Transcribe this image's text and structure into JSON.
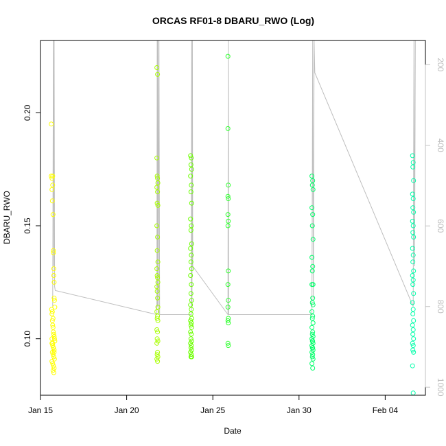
{
  "chart_data": {
    "type": "scatter",
    "title": "ORCAS RF01-8 DBARU_RWO (Log)",
    "xlabel": "Date",
    "ylabel": "DBARU_RWO",
    "x_type": "date",
    "xlim": [
      "2016-01-15T00:00",
      "2016-02-06T08:00"
    ],
    "ylim": [
      0.075,
      0.232
    ],
    "x_ticks": [
      {
        "date": "2016-01-15T00:00",
        "label": "Jan 15"
      },
      {
        "date": "2016-01-20T00:00",
        "label": "Jan 20"
      },
      {
        "date": "2016-01-25T00:00",
        "label": "Jan 25"
      },
      {
        "date": "2016-01-30T00:00",
        "label": "Jan 30"
      },
      {
        "date": "2016-02-04T00:00",
        "label": "Feb 04"
      }
    ],
    "y_ticks": [
      0.1,
      0.15,
      0.2
    ],
    "y_tick_labels": [
      "0.10",
      "0.15",
      "0.20"
    ],
    "right_axis": {
      "label_color": "#c0c0c0",
      "ticks": [
        200,
        400,
        600,
        800,
        1000
      ],
      "tick_labels": [
        "200",
        "400",
        "600",
        "800",
        "1000"
      ],
      "lim": [
        1020,
        140
      ],
      "reversed": true
    },
    "grid": false,
    "pressure_trace": {
      "color": "#bebebe",
      "points": [
        [
          "2016-01-15T17:00",
          800
        ],
        [
          "2016-01-15T18:00",
          140
        ],
        [
          "2016-01-15T18:30",
          700
        ],
        [
          "2016-01-15T19:00",
          140
        ],
        [
          "2016-01-15T19:40",
          750
        ],
        [
          "2016-01-15T20:30",
          760
        ],
        [
          "2016-01-21T18:00",
          820
        ],
        [
          "2016-01-21T18:30",
          140
        ],
        [
          "2016-01-21T19:00",
          800
        ],
        [
          "2016-01-21T19:30",
          140
        ],
        [
          "2016-01-21T20:00",
          820
        ],
        [
          "2016-01-21T21:00",
          140
        ],
        [
          "2016-01-21T22:00",
          820
        ],
        [
          "2016-01-23T18:00",
          820
        ],
        [
          "2016-01-23T18:30",
          140
        ],
        [
          "2016-01-23T19:00",
          800
        ],
        [
          "2016-01-23T19:30",
          140
        ],
        [
          "2016-01-23T20:00",
          700
        ],
        [
          "2016-01-25T21:00",
          820
        ],
        [
          "2016-01-25T21:30",
          140
        ],
        [
          "2016-01-25T22:00",
          820
        ],
        [
          "2016-01-30T18:00",
          820
        ],
        [
          "2016-01-30T19:00",
          140
        ],
        [
          "2016-01-30T20:00",
          780
        ],
        [
          "2016-01-30T21:00",
          140
        ],
        [
          "2016-01-30T22:00",
          220
        ],
        [
          "2016-02-05T15:00",
          800
        ],
        [
          "2016-02-05T16:00",
          140
        ],
        [
          "2016-02-05T17:00",
          700
        ],
        [
          "2016-02-05T18:00",
          140
        ]
      ]
    },
    "series": [
      {
        "color": "#ffff00",
        "x": [
          "2016-01-15T15:00",
          "2016-01-15T15:00",
          "2016-01-15T16:00",
          "2016-01-15T16:00",
          "2016-01-15T16:30",
          "2016-01-15T17:00",
          "2016-01-15T17:00",
          "2016-01-15T17:30",
          "2016-01-15T18:00",
          "2016-01-15T18:00",
          "2016-01-15T18:30",
          "2016-01-15T18:30",
          "2016-01-15T19:00",
          "2016-01-15T19:00",
          "2016-01-15T19:30",
          "2016-01-15T20:00",
          "2016-01-15T15:30",
          "2016-01-15T16:00",
          "2016-01-15T16:30",
          "2016-01-15T17:00",
          "2016-01-15T17:30",
          "2016-01-15T18:00",
          "2016-01-15T18:30",
          "2016-01-15T19:00",
          "2016-01-15T19:30",
          "2016-01-15T20:00",
          "2016-01-15T16:00",
          "2016-01-15T17:00",
          "2016-01-15T18:00",
          "2016-01-15T19:00",
          "2016-01-15T16:30",
          "2016-01-15T17:30",
          "2016-01-15T18:30",
          "2016-01-15T19:30",
          "2016-01-15T16:00",
          "2016-01-15T17:00",
          "2016-01-15T18:00",
          "2016-01-15T19:00",
          "2016-01-15T17:30",
          "2016-01-15T18:30",
          "2016-01-15T16:00",
          "2016-01-15T17:00",
          "2016-01-15T18:00",
          "2016-01-15T19:00",
          "2016-01-15T16:30",
          "2016-01-15T17:30"
        ],
        "y": [
          0.195,
          0.172,
          0.171,
          0.166,
          0.161,
          0.172,
          0.168,
          0.155,
          0.139,
          0.138,
          0.131,
          0.128,
          0.125,
          0.118,
          0.117,
          0.114,
          0.113,
          0.111,
          0.108,
          0.106,
          0.105,
          0.103,
          0.102,
          0.101,
          0.1,
          0.099,
          0.098,
          0.097,
          0.096,
          0.095,
          0.094,
          0.093,
          0.092,
          0.091,
          0.09,
          0.089,
          0.088,
          0.087,
          0.086,
          0.085,
          0.1,
          0.098,
          0.096,
          0.094,
          0.112,
          0.109
        ]
      },
      {
        "color": "#a8ff00",
        "x": [
          "2016-01-21T18:00",
          "2016-01-21T19:00",
          "2016-01-21T18:00",
          "2016-01-21T18:30",
          "2016-01-21T19:00",
          "2016-01-21T19:30",
          "2016-01-21T18:00",
          "2016-01-21T19:00",
          "2016-01-21T18:30",
          "2016-01-21T19:30",
          "2016-01-21T18:00",
          "2016-01-21T19:00",
          "2016-01-21T18:30",
          "2016-01-21T19:30",
          "2016-01-21T18:00",
          "2016-01-21T18:30",
          "2016-01-21T19:00",
          "2016-01-21T19:30",
          "2016-01-21T18:00",
          "2016-01-21T18:30",
          "2016-01-21T19:00",
          "2016-01-21T19:30",
          "2016-01-21T18:00",
          "2016-01-21T19:00",
          "2016-01-21T18:30",
          "2016-01-21T19:30",
          "2016-01-21T18:00",
          "2016-01-21T19:00",
          "2016-01-21T18:30",
          "2016-01-21T19:30",
          "2016-01-21T18:00",
          "2016-01-21T19:00",
          "2016-01-21T18:30",
          "2016-01-21T19:30",
          "2016-01-21T18:00",
          "2016-01-21T19:00"
        ],
        "y": [
          0.22,
          0.217,
          0.18,
          0.172,
          0.171,
          0.169,
          0.167,
          0.165,
          0.16,
          0.159,
          0.15,
          0.145,
          0.139,
          0.134,
          0.131,
          0.128,
          0.127,
          0.125,
          0.123,
          0.121,
          0.118,
          0.114,
          0.112,
          0.11,
          0.109,
          0.108,
          0.104,
          0.103,
          0.1,
          0.099,
          0.098,
          0.094,
          0.093,
          0.092,
          0.091,
          0.09
        ]
      },
      {
        "color": "#6cff00",
        "x": [
          "2016-01-23T17:00",
          "2016-01-23T18:00",
          "2016-01-23T17:30",
          "2016-01-23T18:30",
          "2016-01-23T17:00",
          "2016-01-23T18:00",
          "2016-01-23T17:30",
          "2016-01-23T18:30",
          "2016-01-23T17:00",
          "2016-01-23T18:00",
          "2016-01-23T17:30",
          "2016-01-23T18:30",
          "2016-01-23T17:00",
          "2016-01-23T18:00",
          "2016-01-23T17:30",
          "2016-01-23T18:30",
          "2016-01-23T17:00",
          "2016-01-23T18:00",
          "2016-01-23T17:30",
          "2016-01-23T18:30",
          "2016-01-23T17:00",
          "2016-01-23T18:00",
          "2016-01-23T17:30",
          "2016-01-23T18:30",
          "2016-01-23T17:00",
          "2016-01-23T18:00",
          "2016-01-23T17:30",
          "2016-01-23T18:30",
          "2016-01-23T17:00",
          "2016-01-23T18:00",
          "2016-01-23T17:30",
          "2016-01-23T18:30",
          "2016-01-23T17:00",
          "2016-01-23T18:00",
          "2016-01-23T17:30",
          "2016-01-23T18:30",
          "2016-01-23T17:00",
          "2016-01-23T18:00",
          "2016-01-23T17:30",
          "2016-01-23T18:30"
        ],
        "y": [
          0.181,
          0.18,
          0.177,
          0.175,
          0.172,
          0.168,
          0.165,
          0.16,
          0.153,
          0.15,
          0.148,
          0.142,
          0.14,
          0.137,
          0.134,
          0.131,
          0.128,
          0.124,
          0.12,
          0.117,
          0.115,
          0.113,
          0.111,
          0.109,
          0.108,
          0.107,
          0.106,
          0.105,
          0.103,
          0.102,
          0.1,
          0.099,
          0.098,
          0.097,
          0.096,
          0.095,
          0.094,
          0.093,
          0.092,
          0.092
        ]
      },
      {
        "color": "#33ff33",
        "x": [
          "2016-01-25T21:00",
          "2016-01-25T21:00",
          "2016-01-25T21:30",
          "2016-01-25T21:00",
          "2016-01-25T21:30",
          "2016-01-25T21:00",
          "2016-01-25T21:30",
          "2016-01-25T21:00",
          "2016-01-25T21:30",
          "2016-01-25T21:00",
          "2016-01-25T21:30",
          "2016-01-25T21:00",
          "2016-01-25T21:30",
          "2016-01-25T21:00",
          "2016-01-25T21:30",
          "2016-01-25T21:00",
          "2016-01-25T21:30"
        ],
        "y": [
          0.225,
          0.193,
          0.168,
          0.163,
          0.162,
          0.155,
          0.152,
          0.15,
          0.13,
          0.124,
          0.117,
          0.114,
          0.109,
          0.108,
          0.107,
          0.098,
          0.097
        ]
      },
      {
        "color": "#00ff6a",
        "x": [
          "2016-01-30T18:00",
          "2016-01-30T19:00",
          "2016-01-30T18:30",
          "2016-01-30T19:30",
          "2016-01-30T18:00",
          "2016-01-30T19:00",
          "2016-01-30T18:30",
          "2016-01-30T19:30",
          "2016-01-30T18:00",
          "2016-01-30T19:00",
          "2016-01-30T18:30",
          "2016-01-30T19:30",
          "2016-01-30T18:00",
          "2016-01-30T19:00",
          "2016-01-30T18:30",
          "2016-01-30T19:30",
          "2016-01-30T18:00",
          "2016-01-30T19:00",
          "2016-01-30T18:30",
          "2016-01-30T19:30",
          "2016-01-30T18:00",
          "2016-01-30T19:00",
          "2016-01-30T18:30",
          "2016-01-30T19:30",
          "2016-01-30T18:00",
          "2016-01-30T19:00",
          "2016-01-30T18:30",
          "2016-01-30T19:30",
          "2016-01-30T18:00",
          "2016-01-30T19:00",
          "2016-01-30T18:30",
          "2016-01-30T19:30",
          "2016-01-30T18:00",
          "2016-01-30T19:00",
          "2016-01-30T18:30",
          "2016-01-30T19:30",
          "2016-01-30T18:00",
          "2016-01-30T19:00"
        ],
        "y": [
          0.172,
          0.17,
          0.168,
          0.166,
          0.158,
          0.155,
          0.15,
          0.144,
          0.136,
          0.132,
          0.13,
          0.124,
          0.124,
          0.118,
          0.116,
          0.115,
          0.112,
          0.11,
          0.109,
          0.107,
          0.105,
          0.103,
          0.102,
          0.101,
          0.1,
          0.099,
          0.099,
          0.098,
          0.097,
          0.096,
          0.096,
          0.095,
          0.094,
          0.093,
          0.092,
          0.091,
          0.089,
          0.087
        ]
      },
      {
        "color": "#00ffaa",
        "x": [
          "2016-02-05T14:00",
          "2016-02-05T15:00",
          "2016-02-05T14:30",
          "2016-02-05T15:30",
          "2016-02-05T14:00",
          "2016-02-05T15:00",
          "2016-02-05T14:30",
          "2016-02-05T15:30",
          "2016-02-05T14:00",
          "2016-02-05T15:00",
          "2016-02-05T14:30",
          "2016-02-05T15:30",
          "2016-02-05T14:00",
          "2016-02-05T15:00",
          "2016-02-05T14:30",
          "2016-02-05T15:30",
          "2016-02-05T14:00",
          "2016-02-05T15:00",
          "2016-02-05T14:30",
          "2016-02-05T15:30",
          "2016-02-05T14:00",
          "2016-02-05T15:00",
          "2016-02-05T14:30",
          "2016-02-05T15:30",
          "2016-02-05T14:00",
          "2016-02-05T15:00",
          "2016-02-05T14:30",
          "2016-02-05T15:30",
          "2016-02-05T14:00",
          "2016-02-05T15:00",
          "2016-02-05T14:30",
          "2016-02-05T15:30",
          "2016-02-05T14:00",
          "2016-02-05T15:00"
        ],
        "y": [
          0.181,
          0.178,
          0.176,
          0.17,
          0.164,
          0.162,
          0.158,
          0.156,
          0.152,
          0.15,
          0.147,
          0.145,
          0.14,
          0.137,
          0.134,
          0.13,
          0.128,
          0.126,
          0.124,
          0.12,
          0.116,
          0.113,
          0.111,
          0.108,
          0.106,
          0.104,
          0.102,
          0.1,
          0.098,
          0.097,
          0.095,
          0.094,
          0.088,
          0.076
        ]
      }
    ]
  }
}
